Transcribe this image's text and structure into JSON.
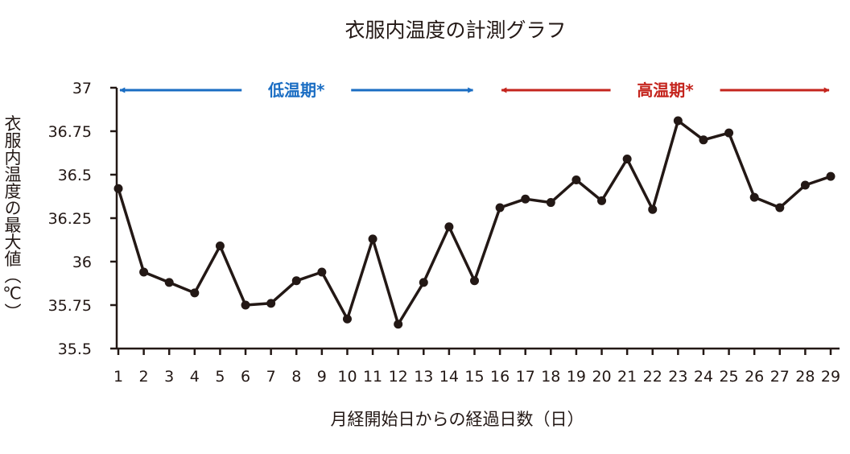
{
  "chart_data": {
    "type": "line",
    "title": "衣服内温度の計測グラフ",
    "xlabel": "月経開始日からの経過日数（日）",
    "ylabel": "衣服内温度の最大値（℃）",
    "ylim": [
      35.5,
      37
    ],
    "y_ticks": [
      {
        "value": 37,
        "label": "37"
      },
      {
        "value": 36.75,
        "label": "36.75"
      },
      {
        "value": 36.5,
        "label": "36.5"
      },
      {
        "value": 36.25,
        "label": "36.25"
      },
      {
        "value": 36,
        "label": "36"
      },
      {
        "value": 35.75,
        "label": "35.75"
      },
      {
        "value": 35.5,
        "label": "35.5"
      }
    ],
    "x": [
      1,
      2,
      3,
      4,
      5,
      6,
      7,
      8,
      9,
      10,
      11,
      12,
      13,
      14,
      15,
      16,
      17,
      18,
      19,
      20,
      21,
      22,
      23,
      24,
      25,
      26,
      27,
      28,
      29
    ],
    "series": [
      {
        "values": [
          36.42,
          35.94,
          35.88,
          35.82,
          36.09,
          35.75,
          35.76,
          35.89,
          35.94,
          35.67,
          36.13,
          35.64,
          35.88,
          36.2,
          35.89,
          36.31,
          36.36,
          36.34,
          36.47,
          36.35,
          36.59,
          36.3,
          36.81,
          36.7,
          36.74,
          36.37,
          36.31,
          36.44,
          36.49
        ],
        "color": "#231815"
      }
    ],
    "grid": false,
    "legend": "none",
    "annotations": [
      {
        "label": "低温期*",
        "from_day": 1,
        "to_day": 15,
        "color": "#1a6dc3"
      },
      {
        "label": "高温期*",
        "from_day": 16,
        "to_day": 29,
        "color": "#c4241d"
      }
    ]
  }
}
